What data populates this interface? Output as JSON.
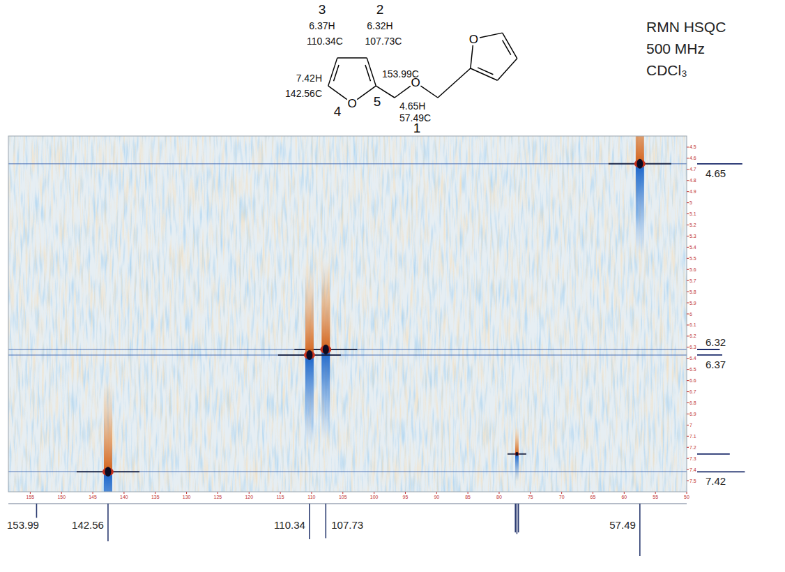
{
  "chart_data": {
    "type": "hsqc",
    "title": "RMN HSQC",
    "subtitle": [
      "500 MHz",
      "CDCl₃"
    ],
    "xlim": [
      158.5,
      50
    ],
    "ylim": [
      4.4,
      7.6
    ],
    "xticks": [
      155,
      150,
      145,
      140,
      135,
      130,
      125,
      120,
      115,
      110,
      105,
      100,
      95,
      90,
      85,
      80,
      75,
      70,
      65,
      60,
      55,
      50
    ],
    "yticks": [
      4.5,
      4.6,
      4.7,
      4.8,
      4.9,
      5.0,
      5.1,
      5.2,
      5.3,
      5.4,
      5.5,
      5.6,
      5.7,
      5.8,
      5.9,
      6.0,
      6.1,
      6.2,
      6.3,
      6.4,
      6.5,
      6.6,
      6.7,
      6.8,
      6.9,
      7.0,
      7.1,
      7.2,
      7.3,
      7.4,
      7.5
    ],
    "peaks": {
      "x": [
        57.49,
        107.73,
        110.34,
        142.56,
        77.16
      ],
      "y": [
        4.65,
        6.32,
        6.37,
        7.42,
        7.26
      ],
      "intensity": [
        1,
        1,
        1,
        1,
        0.3
      ]
    },
    "carbon_spectrum": {
      "x": [
        153.99,
        142.56,
        110.34,
        107.73,
        77.41,
        77.16,
        76.91,
        57.49
      ],
      "values": [
        0.27,
        0.72,
        0.68,
        0.66,
        0.55,
        0.58,
        0.55,
        1.0
      ],
      "labels": [
        "153.99",
        "142.56",
        "110.34",
        "107.73",
        null,
        null,
        null,
        "57.49"
      ],
      "ylim": [
        0,
        1
      ]
    },
    "proton_spectrum": {
      "x": [
        4.65,
        6.32,
        6.37,
        7.26,
        7.42
      ],
      "values": [
        0.9,
        0.45,
        0.5,
        0.65,
        0.95
      ],
      "labels": [
        "4.65",
        "6.32",
        "6.37",
        null,
        "7.42"
      ],
      "ylim": [
        0,
        1
      ]
    }
  },
  "molecule": {
    "oxygen": "O",
    "atoms": [
      {
        "number": "3",
        "h": "6.37H",
        "c": "110.34C"
      },
      {
        "number": "2",
        "h": "6.32H",
        "c": "107.73C"
      },
      {
        "number": "4",
        "h": "7.42H",
        "c": "142.56C"
      },
      {
        "number": "5",
        "c": "153.99C"
      },
      {
        "number": "1",
        "h": "4.65H",
        "c": "57.49C"
      }
    ]
  }
}
